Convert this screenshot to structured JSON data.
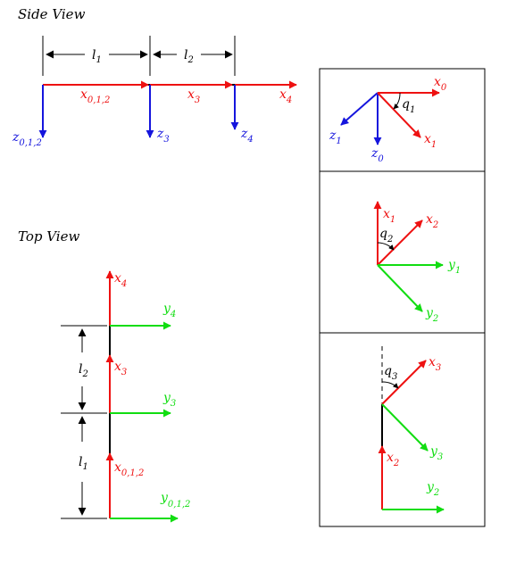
{
  "colors": {
    "red": "#ee1111",
    "blue": "#1515dd",
    "green": "#11dd11",
    "black": "#000000"
  },
  "side_view": {
    "title": "Side View",
    "dim1": {
      "main": "l",
      "sub": "1"
    },
    "dim2": {
      "main": "l",
      "sub": "2"
    },
    "x012": {
      "main": "x",
      "sub": "0,1,2"
    },
    "x3": {
      "main": "x",
      "sub": "3"
    },
    "x4": {
      "main": "x",
      "sub": "4"
    },
    "z012": {
      "main": "z",
      "sub": "0,1,2"
    },
    "z3": {
      "main": "z",
      "sub": "3"
    },
    "z4": {
      "main": "z",
      "sub": "4"
    }
  },
  "top_view": {
    "title": "Top View",
    "dim1": {
      "main": "l",
      "sub": "1"
    },
    "dim2": {
      "main": "l",
      "sub": "2"
    },
    "x4": {
      "main": "x",
      "sub": "4"
    },
    "y4": {
      "main": "y",
      "sub": "4"
    },
    "x3": {
      "main": "x",
      "sub": "3"
    },
    "y3": {
      "main": "y",
      "sub": "3"
    },
    "x012": {
      "main": "x",
      "sub": "0,1,2"
    },
    "y012": {
      "main": "y",
      "sub": "0,1,2"
    }
  },
  "panel1": {
    "x0": {
      "main": "x",
      "sub": "0"
    },
    "q1": {
      "main": "q",
      "sub": "1"
    },
    "x1": {
      "main": "x",
      "sub": "1"
    },
    "z1": {
      "main": "z",
      "sub": "1"
    },
    "z0": {
      "main": "z",
      "sub": "0"
    }
  },
  "panel2": {
    "x1": {
      "main": "x",
      "sub": "1"
    },
    "x2": {
      "main": "x",
      "sub": "2"
    },
    "q2": {
      "main": "q",
      "sub": "2"
    },
    "y1": {
      "main": "y",
      "sub": "1"
    },
    "y2": {
      "main": "y",
      "sub": "2"
    }
  },
  "panel3": {
    "q3": {
      "main": "q",
      "sub": "3"
    },
    "x3": {
      "main": "x",
      "sub": "3"
    },
    "y3": {
      "main": "y",
      "sub": "3"
    },
    "x2": {
      "main": "x",
      "sub": "2"
    },
    "y2": {
      "main": "y",
      "sub": "2"
    }
  }
}
